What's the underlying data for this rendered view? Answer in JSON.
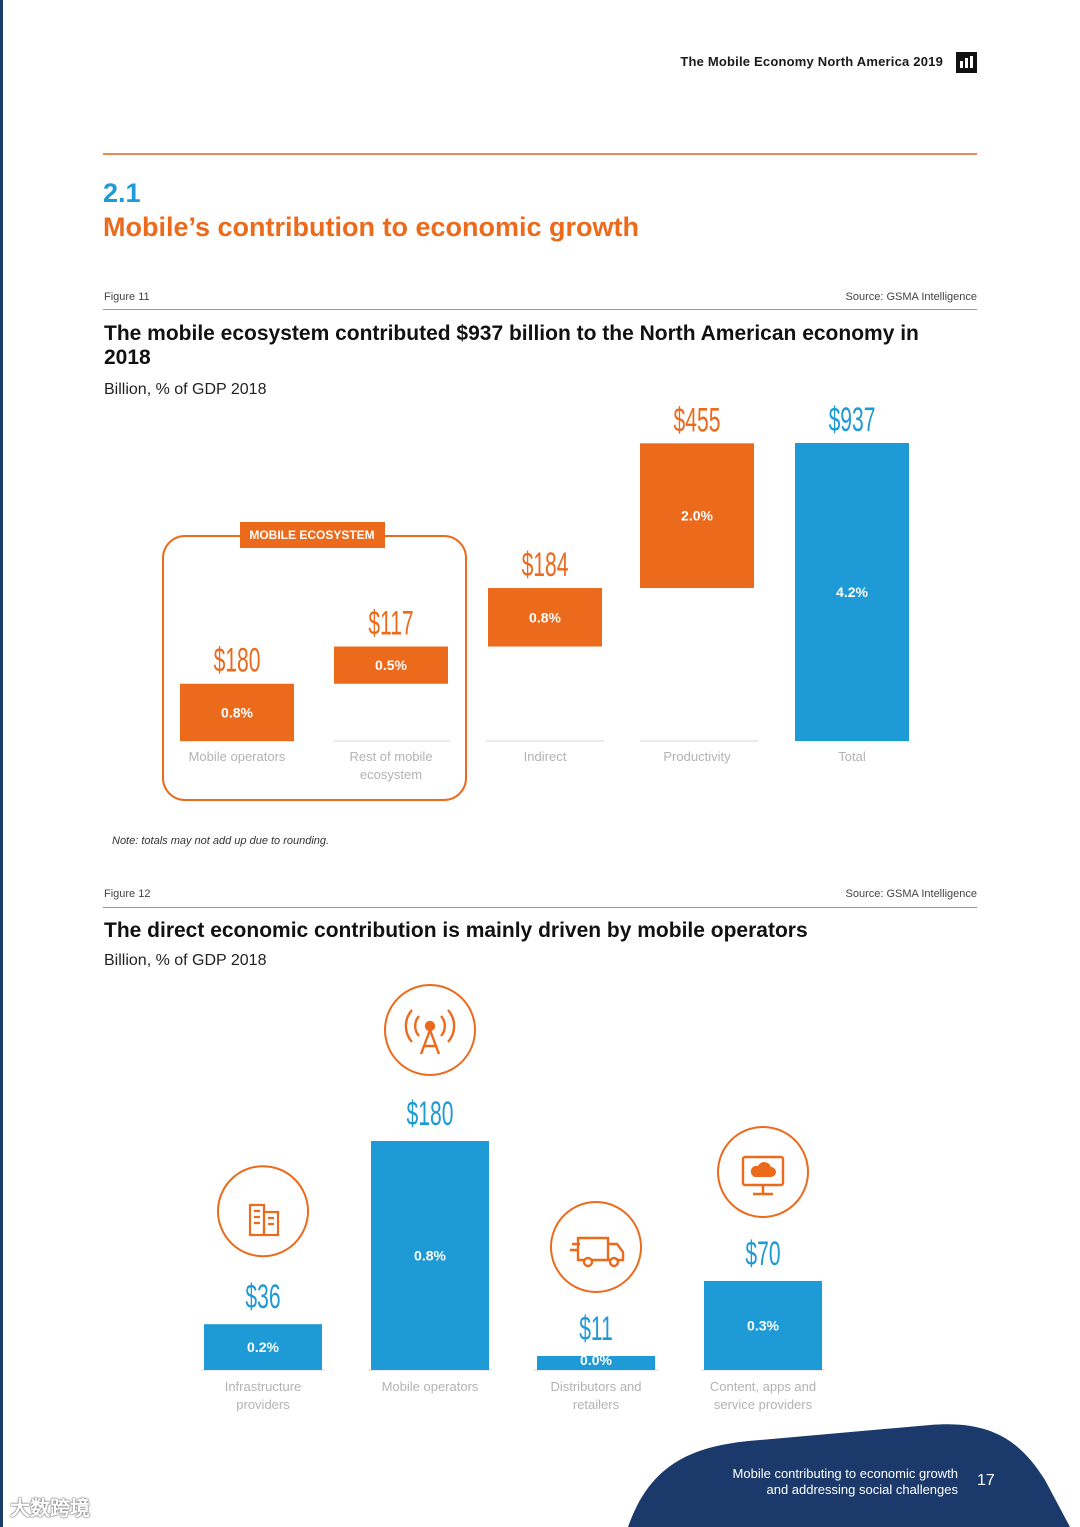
{
  "header": {
    "title": "The Mobile Economy North America 2019",
    "logo": "gsma-logo-icon"
  },
  "section": {
    "number": "2.1",
    "title": "Mobile’s contribution to economic growth"
  },
  "figure11": {
    "label": "Figure 11",
    "source": "Source: GSMA Intelligence",
    "title": "The mobile ecosystem contributed $937 billion to the North American economy in 2018",
    "subtitle": "Billion, % of GDP 2018",
    "box_label": "MOBILE ECOSYSTEM",
    "note": "Note: totals may not add up due to rounding."
  },
  "figure12": {
    "label": "Figure 12",
    "source": "Source: GSMA Intelligence",
    "title": "The direct economic contribution is mainly driven by mobile operators",
    "subtitle": "Billion, % of GDP 2018"
  },
  "chart_data": [
    {
      "type": "bar",
      "subtype": "waterfall",
      "title": "The mobile ecosystem contributed $937 billion to the North American economy in 2018",
      "ylabel": "Billion, % of GDP 2018",
      "categories": [
        "Mobile operators",
        "Rest of mobile ecosystem",
        "Indirect",
        "Productivity",
        "Total"
      ],
      "values": [
        180,
        117,
        184,
        455,
        937
      ],
      "value_labels": [
        "$180",
        "$117",
        "$184",
        "$455",
        "$937"
      ],
      "gdp_share": [
        "0.8%",
        "0.5%",
        "0.8%",
        "2.0%",
        "4.2%"
      ],
      "ylim": [
        0,
        937
      ],
      "colors": {
        "component": "#ec6a1c",
        "total": "#1e9ad6"
      }
    },
    {
      "type": "bar",
      "title": "The direct economic contribution is mainly driven by mobile operators",
      "ylabel": "Billion, % of GDP 2018",
      "categories": [
        "Infrastructure providers",
        "Mobile operators",
        "Distributors and retailers",
        "Content, apps and service providers"
      ],
      "values": [
        36,
        180,
        11,
        70
      ],
      "value_labels": [
        "$36",
        "$180",
        "$11",
        "$70"
      ],
      "gdp_share": [
        "0.2%",
        "0.8%",
        "0.0%",
        "0.3%"
      ],
      "icons": [
        "buildings-icon",
        "signal-tower-icon",
        "delivery-truck-icon",
        "cloud-monitor-icon"
      ],
      "ylim": [
        0,
        180
      ],
      "colors": {
        "bar": "#1e9ad6",
        "icon": "#ec6a1c"
      }
    }
  ],
  "footer": {
    "line1": "Mobile contributing to economic growth",
    "line2": "and addressing social challenges",
    "page": "17"
  },
  "watermark": "大数跨境"
}
